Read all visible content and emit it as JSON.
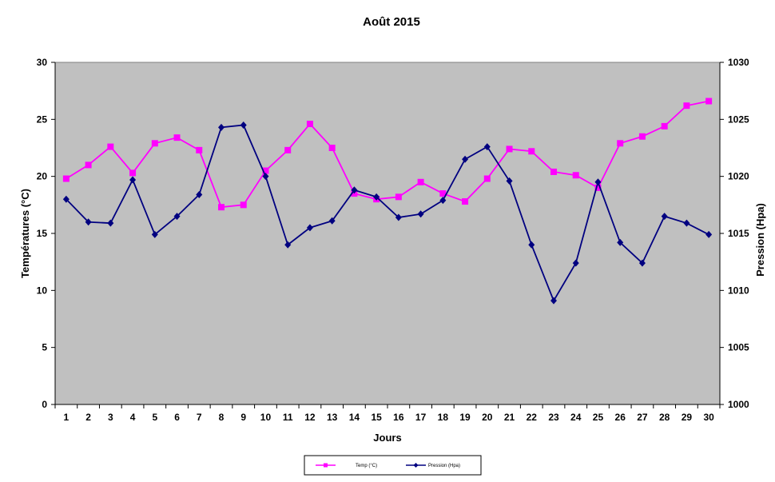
{
  "chart_data": {
    "type": "line",
    "title": "Août 2015",
    "xlabel": "Jours",
    "ylabel_left": "Températures (°C)",
    "ylabel_right": "Pression (Hpa)",
    "x": [
      1,
      2,
      3,
      4,
      5,
      6,
      7,
      8,
      9,
      10,
      11,
      12,
      13,
      14,
      15,
      16,
      17,
      18,
      19,
      20,
      21,
      22,
      23,
      24,
      25,
      26,
      27,
      28,
      29,
      30
    ],
    "ylim_left": [
      0,
      30
    ],
    "yticks_left": [
      0,
      5,
      10,
      15,
      20,
      25,
      30
    ],
    "ylim_right": [
      1000,
      1030
    ],
    "yticks_right": [
      1000,
      1005,
      1010,
      1015,
      1020,
      1025,
      1030
    ],
    "grid": false,
    "legend_position": "bottom",
    "plot_background": "#c0c0c0",
    "series": [
      {
        "name": "Temp (°C)",
        "axis": "left",
        "color": "#ff00ff",
        "marker": "square",
        "values": [
          19.8,
          21.0,
          22.6,
          20.3,
          22.9,
          23.4,
          22.3,
          17.3,
          17.5,
          20.5,
          22.3,
          24.6,
          22.5,
          18.5,
          18.0,
          18.2,
          19.5,
          18.5,
          17.8,
          19.8,
          22.4,
          22.2,
          20.4,
          20.1,
          19.0,
          22.9,
          23.5,
          24.4,
          26.2,
          26.6
        ]
      },
      {
        "name": "Pression (Hpa)",
        "axis": "right",
        "color": "#000080",
        "marker": "diamond",
        "values": [
          1018.0,
          1016.0,
          1015.9,
          1019.7,
          1014.9,
          1016.5,
          1018.4,
          1024.3,
          1024.5,
          1020.0,
          1014.0,
          1015.5,
          1016.1,
          1018.8,
          1018.2,
          1016.4,
          1016.7,
          1017.9,
          1021.5,
          1022.6,
          1019.6,
          1014.0,
          1009.1,
          1012.4,
          1019.5,
          1014.2,
          1012.4,
          1016.5,
          1015.9,
          1014.9
        ]
      }
    ]
  }
}
